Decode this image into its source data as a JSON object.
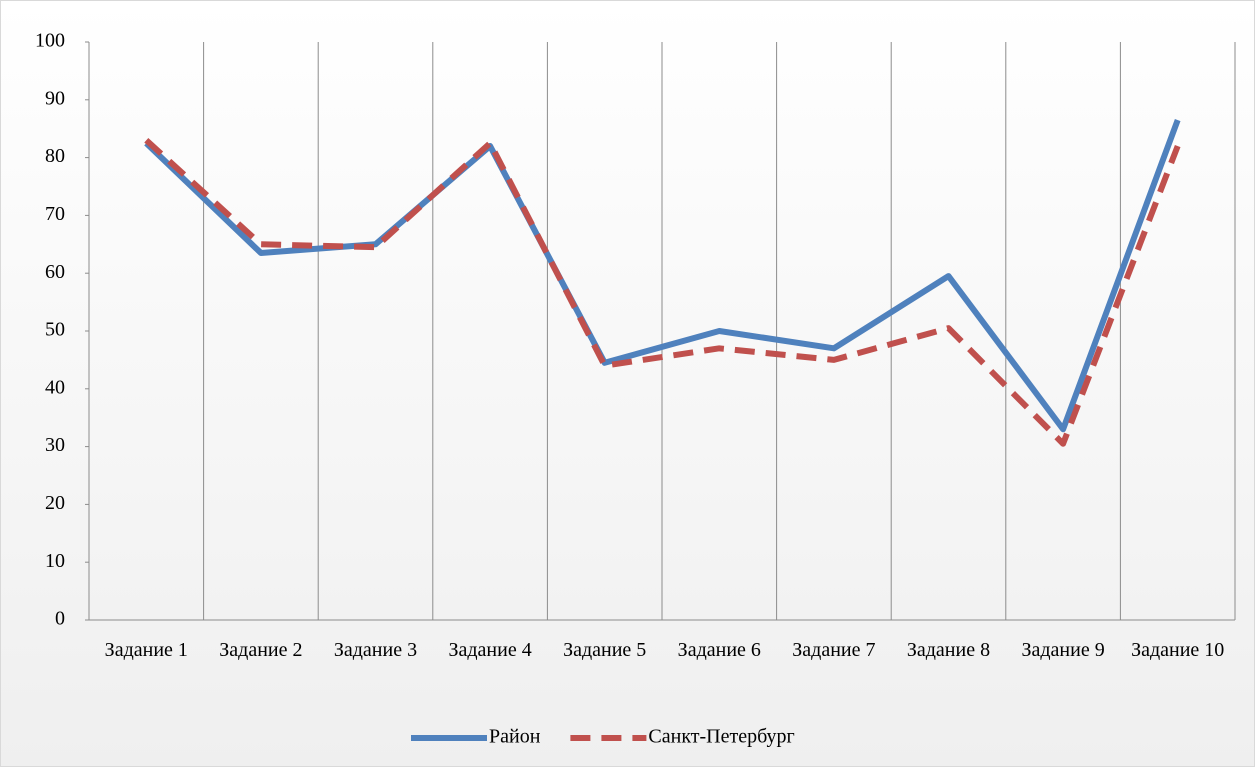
{
  "chart_data": {
    "type": "line",
    "categories": [
      "Задание 1",
      "Задание 2",
      "Задание 3",
      "Задание 4",
      "Задание 5",
      "Задание 6",
      "Задание 7",
      "Задание 8",
      "Задание 9",
      "Задание 10"
    ],
    "series": [
      {
        "name": "Район",
        "color": "#4f81bd",
        "style": "solid",
        "values": [
          82.5,
          63.5,
          65,
          82,
          44.5,
          50,
          47,
          59.5,
          33,
          86.5
        ]
      },
      {
        "name": "Санкт-Петербург",
        "color": "#c0504d",
        "style": "dashed",
        "values": [
          83,
          65,
          64.5,
          82.5,
          44,
          47,
          45,
          50.5,
          30.5,
          82
        ]
      }
    ],
    "ylim": [
      0,
      100
    ],
    "yticks": [
      0,
      10,
      20,
      30,
      40,
      50,
      60,
      70,
      80,
      90,
      100
    ],
    "grid": "vertical",
    "legend": "bottom"
  }
}
